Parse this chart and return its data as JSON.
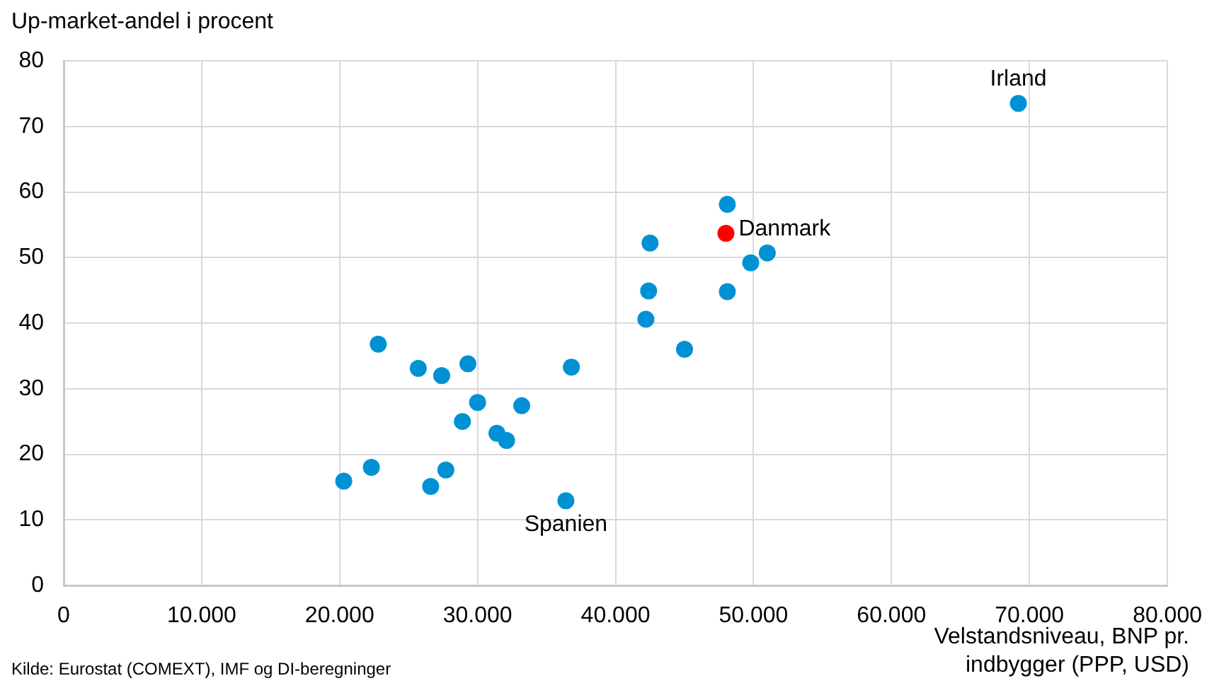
{
  "chart_data": {
    "type": "scatter",
    "xlabel": "Velstandsniveau, BNP pr. indbygger (PPP, USD)",
    "ylabel": "Up-market-andel i procent",
    "series": [
      {
        "color": "#0091d5",
        "x": [
          20300,
          22300,
          22800,
          25700,
          27400,
          26600,
          27700,
          28900,
          29300,
          30000,
          31400,
          32100,
          33200,
          36800,
          36400,
          42200,
          42400,
          42500,
          45000,
          48100,
          48100,
          49800,
          51000,
          69200
        ],
        "values": [
          15.9,
          18.0,
          36.8,
          33.1,
          32.0,
          15.1,
          17.6,
          25.0,
          33.8,
          27.9,
          23.2,
          22.1,
          27.4,
          33.3,
          12.9,
          40.6,
          44.9,
          52.2,
          36.0,
          44.8,
          58.1,
          49.2,
          50.7,
          73.5
        ]
      },
      {
        "color": "#ff0000",
        "x": [
          48000
        ],
        "values": [
          53.7
        ]
      }
    ],
    "xlim": [
      0,
      80000
    ],
    "xticks": [
      0,
      {
        "value": 10000,
        "label": "10.000"
      },
      {
        "value": 20000,
        "label": "20.000"
      },
      {
        "value": 30000,
        "label": "30.000"
      },
      {
        "value": 40000,
        "label": "40.000"
      },
      {
        "value": 50000,
        "label": "50.000"
      },
      {
        "value": 60000,
        "label": "60.000"
      },
      {
        "value": 70000,
        "label": "70.000"
      },
      {
        "value": 80000,
        "label": "80.000"
      }
    ],
    "ylim": [
      0,
      80
    ],
    "yticks": [
      0,
      10,
      20,
      30,
      40,
      50,
      60,
      70,
      80
    ],
    "grid": true,
    "legend": false,
    "marker": "circle",
    "annotations": [
      {
        "text": "Irland",
        "x": 69200,
        "y": 73.5
      },
      {
        "text": "Danmark",
        "x": 48000,
        "y": 53.7
      },
      {
        "text": "Spanien",
        "x": 36400,
        "y": 12.9
      },
      "Kilde: Eurostat (COMEXT), IMF og DI-beregninger"
    ]
  }
}
